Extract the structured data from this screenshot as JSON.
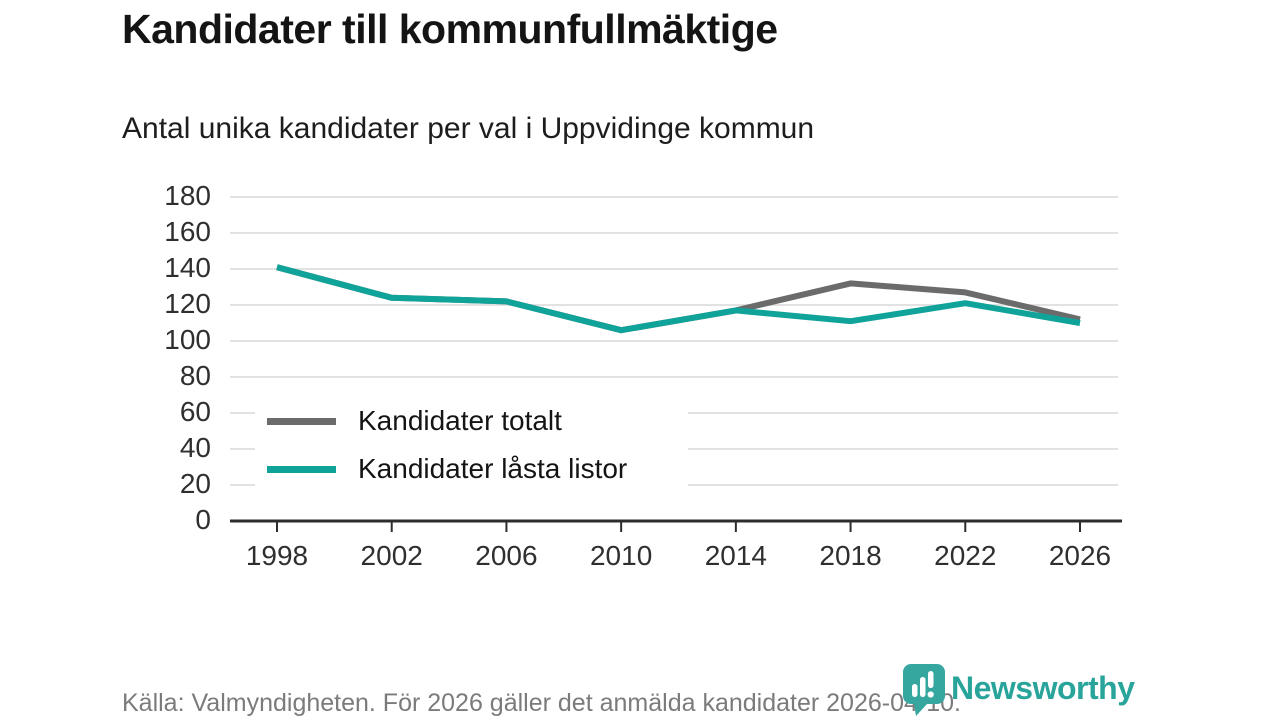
{
  "title": "Kandidater till kommunfullmäktige",
  "subtitle": "Antal unika kandidater per val i Uppvidinge kommun",
  "source_note": "Källa: Valmyndigheten. För 2026 gäller det anmälda kandidater 2026-04-10.",
  "branding": {
    "logo_text": "Newsworthy",
    "logo_icon": "bar-chart-pin-icon",
    "pin_color": "#35a79e",
    "word_color": "#29a49b"
  },
  "colors": {
    "grid": "#e2e2e2",
    "axis": "#2d2d2d",
    "background": "#ffffff"
  },
  "chart_data": {
    "type": "line",
    "categories": [
      "1998",
      "2002",
      "2006",
      "2010",
      "2014",
      "2018",
      "2022",
      "2026"
    ],
    "series": [
      {
        "name": "Kandidater totalt",
        "color": "#6b6b6b",
        "values": [
          141,
          124,
          122,
          106,
          117,
          132,
          127,
          112
        ]
      },
      {
        "name": "Kandidater låsta listor",
        "color": "#10a39a",
        "values": [
          141,
          124,
          122,
          106,
          117,
          111,
          121,
          110
        ]
      }
    ],
    "title": "Kandidater till kommunfullmäktige",
    "xlabel": "",
    "ylabel": "",
    "ylim": [
      0,
      180
    ],
    "y_ticks": [
      0,
      20,
      40,
      60,
      80,
      100,
      120,
      140,
      160,
      180
    ],
    "grid": "horizontal",
    "legend_position": "inside-left-middle",
    "line_width": 6
  }
}
